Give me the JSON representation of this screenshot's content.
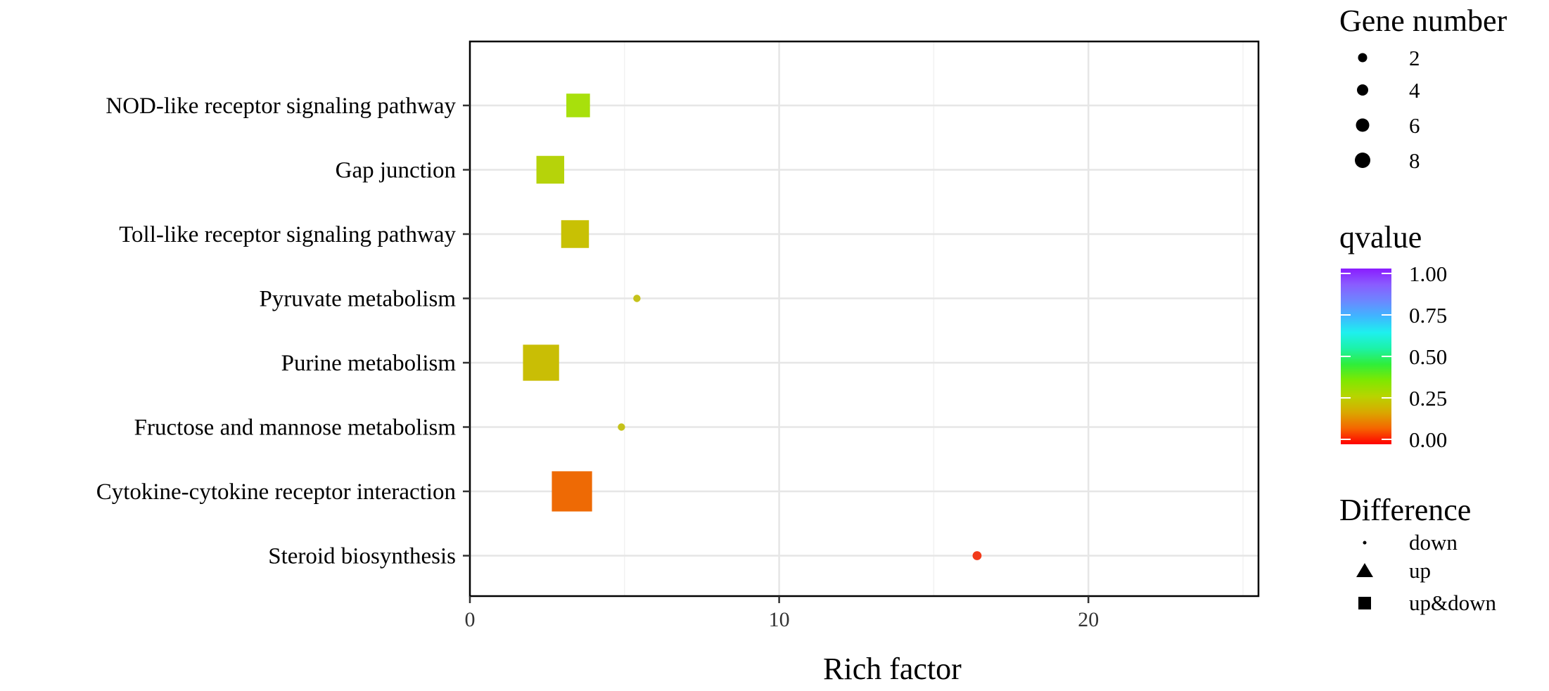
{
  "chart_data": {
    "type": "scatter",
    "title": "",
    "xlabel": "Rich factor",
    "ylabel": "",
    "xlim": [
      0,
      25.5
    ],
    "xticks": [
      0,
      10,
      20
    ],
    "x_tick_labels": [
      "0",
      "10",
      "20"
    ],
    "grid": true,
    "legend_position": "right",
    "categories": [
      "NOD-like receptor signaling pathway",
      "Gap junction",
      "Toll-like receptor signaling pathway",
      "Pyruvate metabolism",
      "Purine metabolism",
      "Fructose and mannose metabolism",
      "Cytokine-cytokine receptor interaction",
      "Steroid biosynthesis"
    ],
    "points": [
      {
        "category": "NOD-like receptor signaling pathway",
        "x": 3.5,
        "gene_number": 4,
        "qvalue": 0.28,
        "difference": "up&down",
        "color": "#a8e00c"
      },
      {
        "category": "Gap junction",
        "x": 2.6,
        "gene_number": 5,
        "qvalue": 0.24,
        "difference": "up&down",
        "color": "#b6d30a"
      },
      {
        "category": "Toll-like receptor signaling pathway",
        "x": 3.4,
        "gene_number": 5,
        "qvalue": 0.19,
        "difference": "up&down",
        "color": "#c8c104"
      },
      {
        "category": "Pyruvate metabolism",
        "x": 5.4,
        "gene_number": 1,
        "qvalue": 0.2,
        "difference": "down",
        "color": "#c5c21a"
      },
      {
        "category": "Purine metabolism",
        "x": 2.3,
        "gene_number": 7,
        "qvalue": 0.19,
        "difference": "up&down",
        "color": "#c9be05"
      },
      {
        "category": "Fructose and mannose metabolism",
        "x": 4.9,
        "gene_number": 1,
        "qvalue": 0.2,
        "difference": "down",
        "color": "#c5c21a"
      },
      {
        "category": "Cytokine-cytokine receptor interaction",
        "x": 3.3,
        "gene_number": 8,
        "qvalue": 0.06,
        "difference": "up&down",
        "color": "#ee6a05"
      },
      {
        "category": "Steroid biosynthesis",
        "x": 16.4,
        "gene_number": 2,
        "qvalue": 0.01,
        "difference": "down",
        "color": "#f23a1a"
      }
    ],
    "legends": {
      "size": {
        "title": "Gene number",
        "values": [
          "2",
          "4",
          "6",
          "8"
        ]
      },
      "color": {
        "title": "qvalue",
        "ticks": [
          "1.00",
          "0.75",
          "0.50",
          "0.25",
          "0.00"
        ],
        "range": [
          0,
          1
        ],
        "gradient": [
          "#ff0000",
          "#f56600",
          "#d9a800",
          "#b8d400",
          "#7fe800",
          "#2fee3a",
          "#1cf2a8",
          "#1ef0ef",
          "#3fb6ff",
          "#6d86ff",
          "#8a5cff",
          "#8a1cff"
        ]
      },
      "shape": {
        "title": "Difference",
        "values": [
          "down",
          "up",
          "up&down"
        ]
      }
    }
  }
}
